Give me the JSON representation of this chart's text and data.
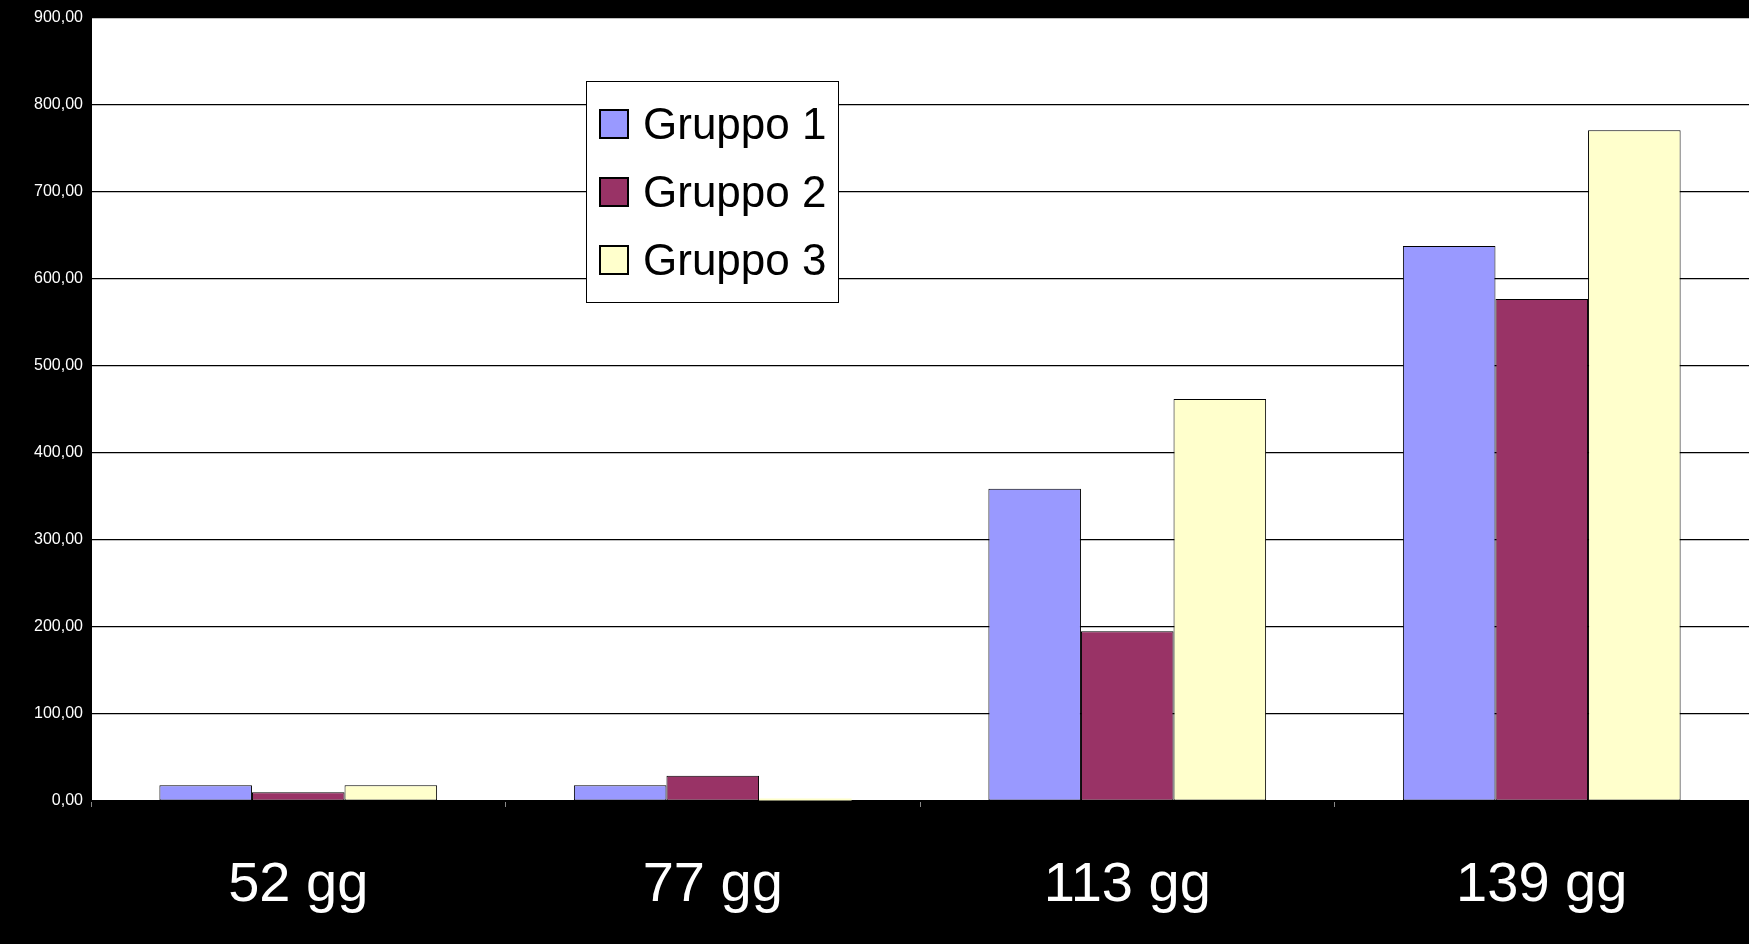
{
  "chart_data": {
    "type": "bar",
    "categories": [
      "52 gg",
      "77 gg",
      "113 gg",
      "139 gg"
    ],
    "series": [
      {
        "name": "Gruppo 1",
        "color": "#9999ff",
        "values": [
          18,
          18,
          359,
          638
        ]
      },
      {
        "name": "Gruppo 2",
        "color": "#993366",
        "values": [
          10,
          29,
          195,
          577
        ]
      },
      {
        "name": "Gruppo 3",
        "color": "#ffffcc",
        "values": [
          18,
          3,
          462,
          771
        ]
      }
    ],
    "ylim": [
      0,
      900
    ],
    "yticks": [
      {
        "value": 0,
        "label": "0,00"
      },
      {
        "value": 100,
        "label": "100,00"
      },
      {
        "value": 200,
        "label": "200,00"
      },
      {
        "value": 300,
        "label": "300,00"
      },
      {
        "value": 400,
        "label": "400,00"
      },
      {
        "value": 500,
        "label": "500,00"
      },
      {
        "value": 600,
        "label": "600,00"
      },
      {
        "value": 700,
        "label": "700,00"
      },
      {
        "value": 800,
        "label": "800,00"
      },
      {
        "value": 900,
        "label": "900,00"
      }
    ],
    "grid": "y",
    "legend": "top left"
  }
}
